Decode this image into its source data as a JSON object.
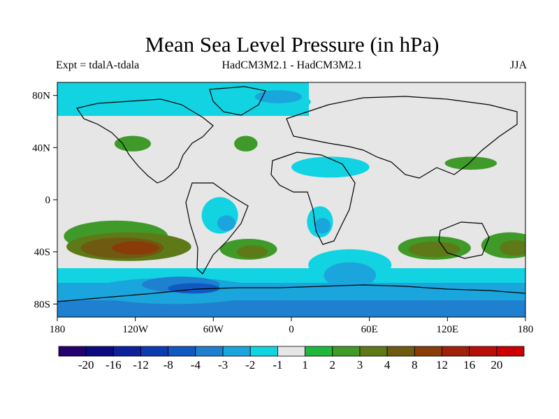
{
  "title": "Mean Sea Level Pressure (in hPa)",
  "subtitle_left": "Expt = tdalA-tdala",
  "subtitle_center": "HadCM3M2.1 - HadCM3M2.1",
  "subtitle_right": "JJA",
  "lat_labels": [
    "80N",
    "40N",
    "0",
    "40S",
    "80S"
  ],
  "lat_values": [
    80,
    40,
    0,
    -40,
    -80
  ],
  "lon_labels": [
    "180",
    "120W",
    "60W",
    "0",
    "60E",
    "120E",
    "180"
  ],
  "lon_values": [
    -180,
    -120,
    -60,
    0,
    60,
    120,
    180
  ],
  "colorbar": {
    "colors": [
      "#24006e",
      "#0b0a80",
      "#0d229a",
      "#0a3bb0",
      "#1159c2",
      "#1f80d0",
      "#1aa5dc",
      "#12d3e2",
      "#e6e6e6",
      "#20b83c",
      "#3f9a2a",
      "#5e7a18",
      "#6e5a10",
      "#8a3c08",
      "#a02008",
      "#b80e08",
      "#cc0000"
    ],
    "labels": [
      "-20",
      "-16",
      "-12",
      "-8",
      "-4",
      "-3",
      "-2",
      "-1",
      "1",
      "2",
      "3",
      "4",
      "8",
      "12",
      "16",
      "20"
    ]
  },
  "map_data": {
    "type": "filled_contour_map",
    "projection": "cylindrical_equidistant",
    "lon_range": [
      -180,
      180
    ],
    "lat_range": [
      -90,
      90
    ],
    "regions": [
      {
        "lon": -135,
        "lat": -28,
        "rx": 40,
        "ry": 12,
        "level": "2"
      },
      {
        "lon": -125,
        "lat": -36,
        "rx": 48,
        "ry": 11,
        "level": "3"
      },
      {
        "lon": -130,
        "lat": -37,
        "rx": 32,
        "ry": 8,
        "level": "4"
      },
      {
        "lon": -120,
        "lat": -37,
        "rx": 18,
        "ry": 5,
        "level": "8"
      },
      {
        "lon": -33,
        "lat": -38,
        "rx": 22,
        "ry": 8,
        "level": "2"
      },
      {
        "lon": -30,
        "lat": -40,
        "rx": 12,
        "ry": 5,
        "level": "3"
      },
      {
        "lon": -122,
        "lat": 43,
        "rx": 14,
        "ry": 6,
        "level": "2"
      },
      {
        "lon": -35,
        "lat": 43,
        "rx": 9,
        "ry": 6,
        "level": "2"
      },
      {
        "lon": 138,
        "lat": 28,
        "rx": 20,
        "ry": 5,
        "level": "2"
      },
      {
        "lon": 110,
        "lat": -37,
        "rx": 28,
        "ry": 9,
        "level": "2"
      },
      {
        "lon": 110,
        "lat": -38,
        "rx": 20,
        "ry": 6,
        "level": "3"
      },
      {
        "lon": 168,
        "lat": -35,
        "rx": 22,
        "ry": 10,
        "level": "2"
      },
      {
        "lon": 172,
        "lat": -37,
        "rx": 12,
        "ry": 6,
        "level": "3"
      },
      {
        "lon": -55,
        "lat": -12,
        "rx": 14,
        "ry": 14,
        "level": "-1"
      },
      {
        "lon": -50,
        "lat": -18,
        "rx": 7,
        "ry": 6,
        "level": "-2"
      },
      {
        "lon": 22,
        "lat": -17,
        "rx": 10,
        "ry": 12,
        "level": "-1"
      },
      {
        "lon": 24,
        "lat": -20,
        "rx": 6,
        "ry": 6,
        "level": "-2"
      },
      {
        "lon": 30,
        "lat": 25,
        "rx": 30,
        "ry": 8,
        "level": "-1"
      },
      {
        "lon": 45,
        "lat": -50,
        "rx": 32,
        "ry": 12,
        "level": "-1"
      },
      {
        "lon": 45,
        "lat": -58,
        "rx": 20,
        "ry": 10,
        "level": "-2"
      },
      {
        "lon": -90,
        "lat": -70,
        "rx": 65,
        "ry": 10,
        "level": "-2"
      },
      {
        "lon": -85,
        "lat": -65,
        "rx": 30,
        "ry": 6,
        "level": "-3"
      },
      {
        "lon": -75,
        "lat": -68,
        "rx": 20,
        "ry": 4,
        "level": "-4"
      },
      {
        "lon": -25,
        "lat": 75,
        "rx": 40,
        "ry": 8,
        "level": "-1"
      },
      {
        "lon": -10,
        "lat": 79,
        "rx": 18,
        "ry": 5,
        "level": "-2"
      }
    ]
  }
}
